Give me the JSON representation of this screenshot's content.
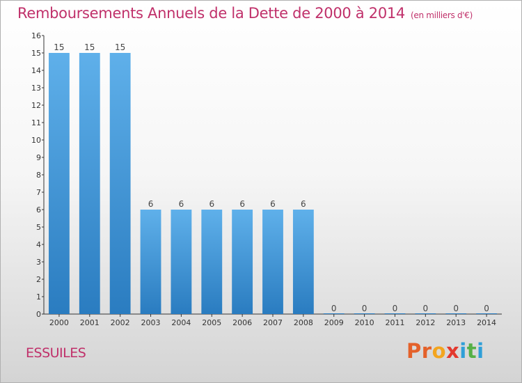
{
  "header": {
    "title": "Remboursements Annuels de la Dette de 2000 à 2014",
    "unit": "(en milliers d'€)"
  },
  "location": "ESSUILES",
  "logo": {
    "letters": [
      "P",
      "r",
      "o",
      "x",
      "i",
      "t",
      "i"
    ],
    "colors": [
      "#e4612a",
      "#e4612a",
      "#f3a51f",
      "#e3382e",
      "#2f9fd8",
      "#56b046",
      "#2f9fd8"
    ]
  },
  "chart_data": {
    "type": "bar",
    "categories": [
      "2000",
      "2001",
      "2002",
      "2003",
      "2004",
      "2005",
      "2006",
      "2007",
      "2008",
      "2009",
      "2010",
      "2011",
      "2012",
      "2013",
      "2014"
    ],
    "values": [
      15,
      15,
      15,
      6,
      6,
      6,
      6,
      6,
      6,
      0,
      0,
      0,
      0,
      0,
      0
    ],
    "data_labels": [
      "15",
      "15",
      "15",
      "6",
      "6",
      "6",
      "6",
      "6",
      "6",
      "0",
      "0",
      "0",
      "0",
      "0",
      "0"
    ],
    "title": "Remboursements Annuels de la Dette de 2000 à 2014",
    "ylim": [
      0,
      16
    ],
    "yticks": [
      "0",
      "1",
      "2",
      "3",
      "4",
      "5",
      "6",
      "7",
      "8",
      "9",
      "10",
      "11",
      "12",
      "13",
      "14",
      "15",
      "16"
    ],
    "grid": false,
    "bar_color": "#4da0e0"
  }
}
